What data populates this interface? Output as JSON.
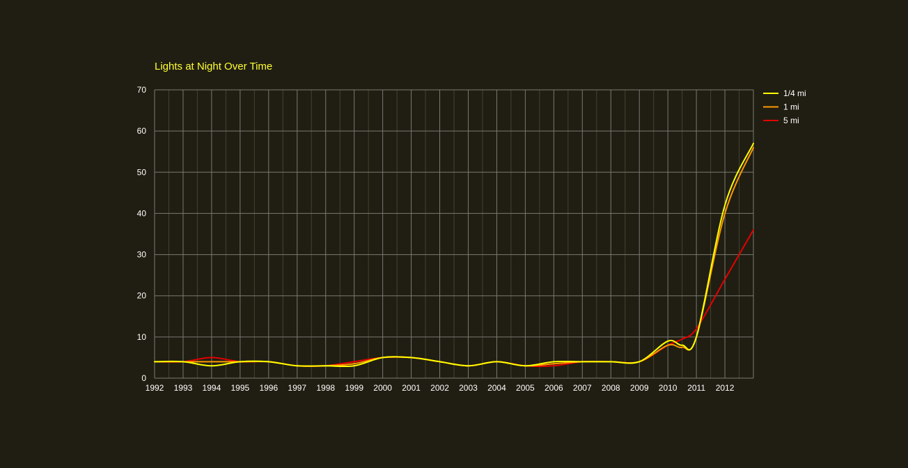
{
  "colors": {
    "background": "#201e12",
    "grid_major": "#7a7a72",
    "grid_minor": "#44432f",
    "title": "#ffff33",
    "tick_text": "#ffffff"
  },
  "chart_data": {
    "type": "line",
    "title": "Lights at Night Over Time",
    "xlabel": "",
    "ylabel": "",
    "curve": "smooth",
    "xlim": [
      1992,
      2013
    ],
    "ylim": [
      0,
      70
    ],
    "x_ticks": [
      "1992",
      "1993",
      "1994",
      "1995",
      "1996",
      "1997",
      "1998",
      "1999",
      "2000",
      "2001",
      "2002",
      "2003",
      "2004",
      "2005",
      "2006",
      "2007",
      "2008",
      "2009",
      "2010",
      "2011",
      "2012"
    ],
    "y_ticks": [
      "0",
      "10",
      "20",
      "30",
      "40",
      "50",
      "60",
      "70"
    ],
    "grid": true,
    "legend_position": "right",
    "x": [
      1992,
      1993,
      1994,
      1995,
      1996,
      1997,
      1998,
      1999,
      2000,
      2001,
      2002,
      2003,
      2004,
      2005,
      2006,
      2007,
      2008,
      2009,
      2010,
      2010.5,
      2011,
      2012,
      2013
    ],
    "series": [
      {
        "name": "1/4 mi",
        "color": "#ffff00",
        "values": [
          4,
          4,
          3,
          4,
          4,
          3,
          3,
          3,
          5,
          5,
          4,
          3,
          4,
          3,
          4,
          4,
          4,
          4,
          9,
          8,
          10,
          42,
          57
        ]
      },
      {
        "name": "1 mi",
        "color": "#ff9900",
        "values": [
          4,
          4,
          4,
          4,
          4,
          3,
          3,
          3.5,
          5,
          5,
          4,
          3,
          4,
          3,
          3.5,
          4,
          4,
          4,
          8,
          7.5,
          10,
          40,
          56
        ]
      },
      {
        "name": "5 mi",
        "color": "#e60000",
        "values": [
          4,
          4,
          5,
          4,
          4,
          3,
          3,
          4,
          5,
          5,
          4,
          3,
          4,
          3,
          3,
          4,
          4,
          4,
          8,
          9.5,
          12,
          24,
          36
        ]
      }
    ]
  }
}
